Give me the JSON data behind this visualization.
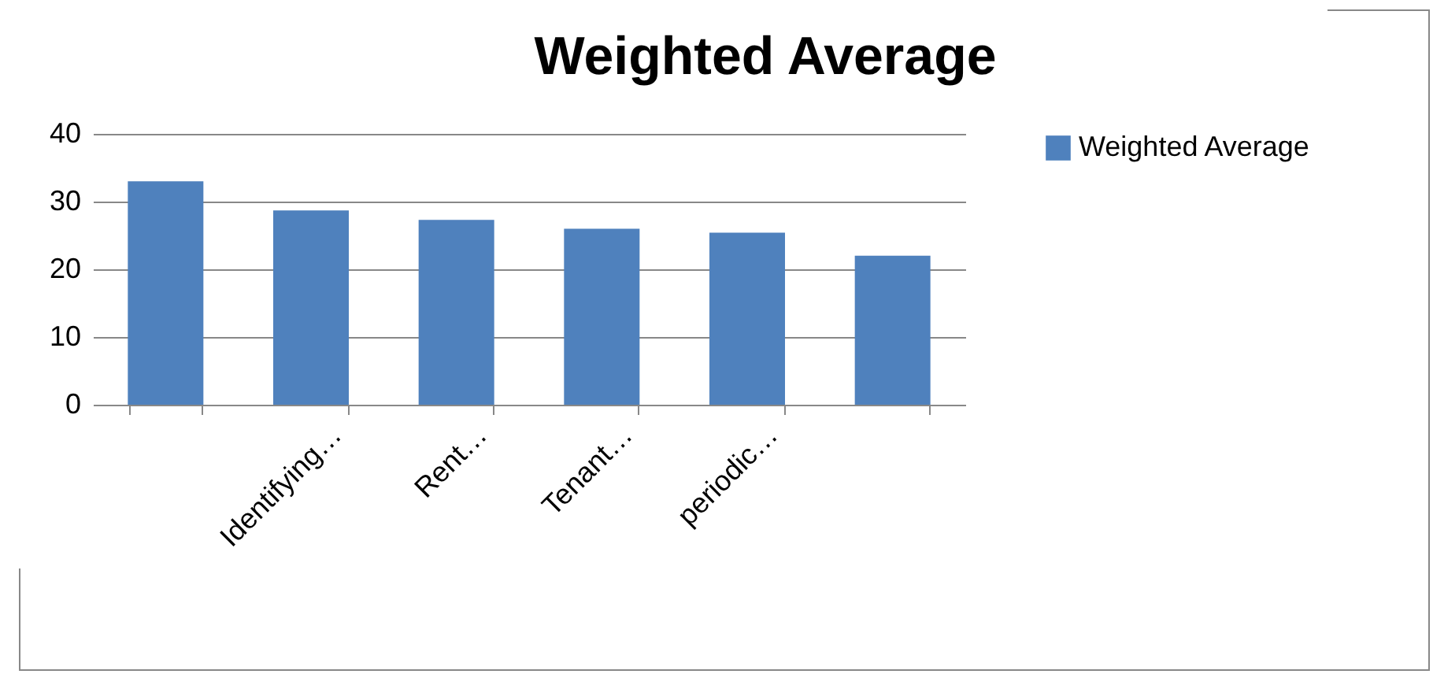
{
  "chart_data": {
    "type": "bar",
    "title": "Weighted Average",
    "categories": [
      null,
      "Identifying…",
      "Rent…",
      "Tenant…",
      "periodic…",
      null
    ],
    "series": [
      {
        "name": "Weighted Average",
        "color": "#4f81bd",
        "values": [
          33,
          28.7,
          27.3,
          26,
          25.4,
          22
        ]
      }
    ],
    "ylim": [
      0,
      40
    ],
    "yticks": [
      0,
      10,
      20,
      30,
      40
    ],
    "grid": "y",
    "legend": "right"
  }
}
